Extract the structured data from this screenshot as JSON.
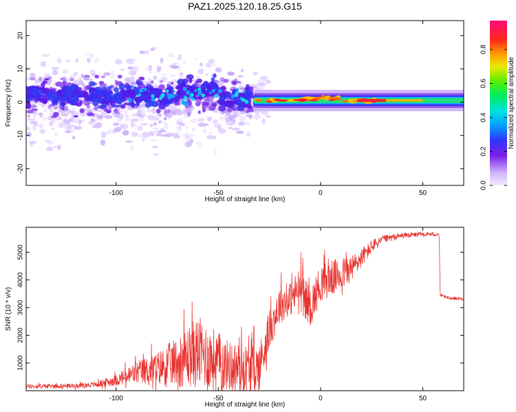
{
  "title": "PAZ1.2025.120.18.25.G15",
  "colors": {
    "snr_line": "#e8322e",
    "frame": "#000000",
    "background": "#ffffff"
  },
  "chart_data": [
    {
      "type": "heatmap",
      "title": "PAZ1.2025.120.18.25.G15",
      "xlabel": "Height of straight line (km)",
      "ylabel": "Frequency (Hz)",
      "xlim": [
        -144,
        70
      ],
      "ylim": [
        -25,
        24.5
      ],
      "xticks": [
        "-100",
        "-50",
        "0",
        "50"
      ],
      "xtick_values": [
        -100,
        -50,
        0,
        50
      ],
      "yticks": [
        "-20",
        "-10",
        "0",
        "10",
        "20"
      ],
      "ytick_values": [
        -20,
        -10,
        0,
        10,
        20
      ],
      "colorbar": {
        "label": "Normalized spectral amplitude",
        "ticks": [
          "0.0",
          "0.2",
          "0.4",
          "0.6",
          "0.8"
        ],
        "tick_values": [
          0.0,
          0.2,
          0.4,
          0.6,
          0.8
        ],
        "range": [
          0,
          0.97
        ],
        "colormap": "rainbow (lavender-purple-blue-cyan-green-yellow-orange-red-magenta)"
      },
      "grid": false,
      "features": {
        "scattered_region_km": [
          -144,
          -33
        ],
        "scattered_frequency_band_hz": [
          -20,
          20
        ],
        "strong_cluster_band_hz": [
          -5,
          10
        ],
        "narrow_line_region_km": [
          -33,
          70
        ],
        "narrow_line_frequency_hz": 0.5,
        "peak_amplitude_region_km": [
          -25,
          30
        ]
      }
    },
    {
      "type": "line",
      "xlabel": "Height of straight line (km)",
      "ylabel": "SNR (10 * v/v)",
      "xlim": [
        -144,
        70
      ],
      "ylim": [
        0,
        5900
      ],
      "xticks": [
        "-100",
        "-50",
        "0",
        "50"
      ],
      "xtick_values": [
        -100,
        -50,
        0,
        50
      ],
      "yticks": [
        "1000",
        "2000",
        "3000",
        "4000",
        "5000"
      ],
      "ytick_values": [
        1000,
        2000,
        3000,
        4000,
        5000
      ],
      "grid": false,
      "series": [
        {
          "x": [
            -144,
            -120,
            -110,
            -100,
            -95,
            -90,
            -80,
            -70,
            -60,
            -50,
            -45,
            -40,
            -35,
            -30,
            -25,
            -20,
            -15,
            -10,
            -5,
            0,
            5,
            10,
            15,
            20,
            25,
            30,
            40,
            50,
            58,
            58.5,
            62,
            70
          ],
          "y": [
            150,
            180,
            220,
            380,
            500,
            650,
            800,
            1050,
            1400,
            1050,
            900,
            850,
            800,
            850,
            2200,
            3100,
            3300,
            3700,
            3000,
            3900,
            4050,
            4200,
            4400,
            4800,
            5200,
            5450,
            5600,
            5650,
            5650,
            3450,
            3350,
            3320
          ],
          "spread": [
            80,
            80,
            100,
            200,
            320,
            420,
            600,
            900,
            1300,
            1100,
            900,
            900,
            850,
            900,
            700,
            700,
            600,
            800,
            700,
            700,
            650,
            600,
            500,
            350,
            250,
            150,
            100,
            80,
            80,
            60,
            60,
            60
          ]
        }
      ]
    }
  ]
}
